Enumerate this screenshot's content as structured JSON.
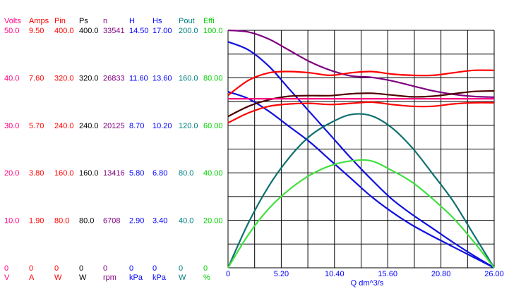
{
  "colors": {
    "volts": "#ff0080",
    "amps": "#ff0000",
    "pin": "#ff0000",
    "ps": "#000000",
    "n": "#800080",
    "h": "#0000ff",
    "hs": "#0000ff",
    "pout": "#008080",
    "effi": "#00d000",
    "grid": "#000000",
    "curve_blue": "#1010e0",
    "curve_purple": "#800080",
    "curve_red": "#ff0000",
    "curve_maroon": "#500000",
    "curve_pink": "#ff0080",
    "curve_teal": "#107070",
    "curve_green": "#40e040"
  },
  "chart_data": {
    "type": "line",
    "xlabel": "Q  dm^3/s",
    "xlim": [
      0,
      26
    ],
    "x_ticks": [
      "0",
      "5.20",
      "10.40",
      "15.60",
      "20.80",
      "26.00"
    ],
    "y_axes": [
      {
        "key": "volts",
        "title": "Volts",
        "unit": "V",
        "ticks": [
          "50.0",
          "40.0",
          "30.0",
          "20.0",
          "10.0",
          "0"
        ]
      },
      {
        "key": "amps",
        "title": "Amps",
        "unit": "A",
        "ticks": [
          "9.50",
          "7.60",
          "5.70",
          "3.80",
          "1.90",
          "0"
        ]
      },
      {
        "key": "pin",
        "title": "Pin",
        "unit": "W",
        "ticks": [
          "400.0",
          "320.0",
          "240.0",
          "160.0",
          "80.0",
          "0"
        ]
      },
      {
        "key": "ps",
        "title": "Ps",
        "unit": "W",
        "ticks": [
          "400.0",
          "320.0",
          "240.0",
          "160.0",
          "80.0",
          "0"
        ]
      },
      {
        "key": "n",
        "title": "n",
        "unit": "rpm",
        "ticks": [
          "33541",
          "26833",
          "20125",
          "13416",
          "6708",
          "0"
        ]
      },
      {
        "key": "h",
        "title": "H",
        "unit": "kPa",
        "ticks": [
          "14.50",
          "11.60",
          "8.70",
          "5.80",
          "2.90",
          "0"
        ]
      },
      {
        "key": "hs",
        "title": "Hs",
        "unit": "kPa",
        "ticks": [
          "17.00",
          "13.60",
          "10.20",
          "6.80",
          "3.40",
          "0"
        ]
      },
      {
        "key": "pout",
        "title": "Pout",
        "unit": "W",
        "ticks": [
          "200.0",
          "160.0",
          "120.0",
          "80.0",
          "40.0",
          "0"
        ]
      },
      {
        "key": "effi",
        "title": "Effi",
        "unit": "%",
        "ticks": [
          "100.0",
          "80.00",
          "60.00",
          "40.00",
          "20.00",
          "0"
        ]
      }
    ],
    "series": [
      {
        "axis": "n",
        "color": "curve_purple",
        "x": [
          0,
          2,
          4,
          6,
          8,
          10,
          12,
          14,
          16,
          18,
          20,
          22,
          24,
          26
        ],
        "y": [
          33541,
          33300,
          32300,
          30700,
          29100,
          27900,
          27100,
          26900,
          26400,
          25700,
          25000,
          24500,
          24200,
          24100
        ]
      },
      {
        "axis": "h",
        "color": "curve_blue",
        "x": [
          0,
          2,
          4,
          6,
          8,
          10,
          12,
          14,
          16,
          18,
          20,
          22,
          24,
          26
        ],
        "y": [
          13.8,
          13.3,
          12.3,
          10.9,
          9.5,
          8.1,
          6.7,
          5.4,
          4.2,
          3.25,
          2.4,
          1.55,
          0.75,
          0
        ]
      },
      {
        "axis": "hs",
        "color": "curve_blue",
        "x": [
          0,
          2,
          4,
          6,
          8,
          10,
          12,
          14,
          16,
          18,
          20,
          22,
          24,
          26
        ],
        "y": [
          12.6,
          12.1,
          11.2,
          10.1,
          9.0,
          7.7,
          6.4,
          5.1,
          4.0,
          3.05,
          2.25,
          1.5,
          0.75,
          0
        ]
      },
      {
        "axis": "amps",
        "color": "curve_red",
        "x": [
          0,
          2,
          4,
          6,
          8,
          10,
          12,
          14,
          16,
          18,
          20,
          22,
          24,
          26
        ],
        "y": [
          6.9,
          7.5,
          7.8,
          7.85,
          7.8,
          7.7,
          7.8,
          7.85,
          7.75,
          7.7,
          7.7,
          7.8,
          7.9,
          7.9
        ]
      },
      {
        "axis": "pin",
        "color": "curve_red",
        "x": [
          0,
          2,
          4,
          6,
          8,
          10,
          12,
          14,
          16,
          18,
          20,
          22,
          24,
          26
        ],
        "y": [
          244,
          261,
          272,
          276,
          277,
          275,
          277,
          279,
          275,
          272,
          272,
          276,
          278,
          278
        ]
      },
      {
        "axis": "ps",
        "color": "curve_maroon",
        "x": [
          0,
          2,
          4,
          6,
          8,
          10,
          12,
          14,
          16,
          18,
          20,
          22,
          24,
          26
        ],
        "y": [
          255,
          272,
          283,
          289,
          290,
          290,
          293,
          294,
          291,
          288,
          289,
          293,
          297,
          298
        ]
      },
      {
        "axis": "volts",
        "color": "curve_pink",
        "x": [
          0,
          26
        ],
        "y": [
          35.6,
          35.6
        ]
      },
      {
        "axis": "pout",
        "color": "curve_teal",
        "x": [
          0,
          2,
          4,
          6,
          8,
          10,
          12,
          14,
          16,
          18,
          20,
          22,
          24,
          26
        ],
        "y": [
          0,
          38,
          69,
          93,
          111,
          122,
          129,
          128,
          118,
          101,
          79,
          56,
          28,
          0
        ]
      },
      {
        "axis": "effi",
        "color": "curve_green",
        "x": [
          0,
          2,
          4,
          6,
          8,
          10,
          12,
          14,
          16,
          18,
          20,
          22,
          24,
          26
        ],
        "y": [
          0,
          14,
          25,
          33,
          39,
          43,
          45,
          45,
          41,
          36,
          29,
          21,
          11,
          0
        ]
      }
    ]
  }
}
